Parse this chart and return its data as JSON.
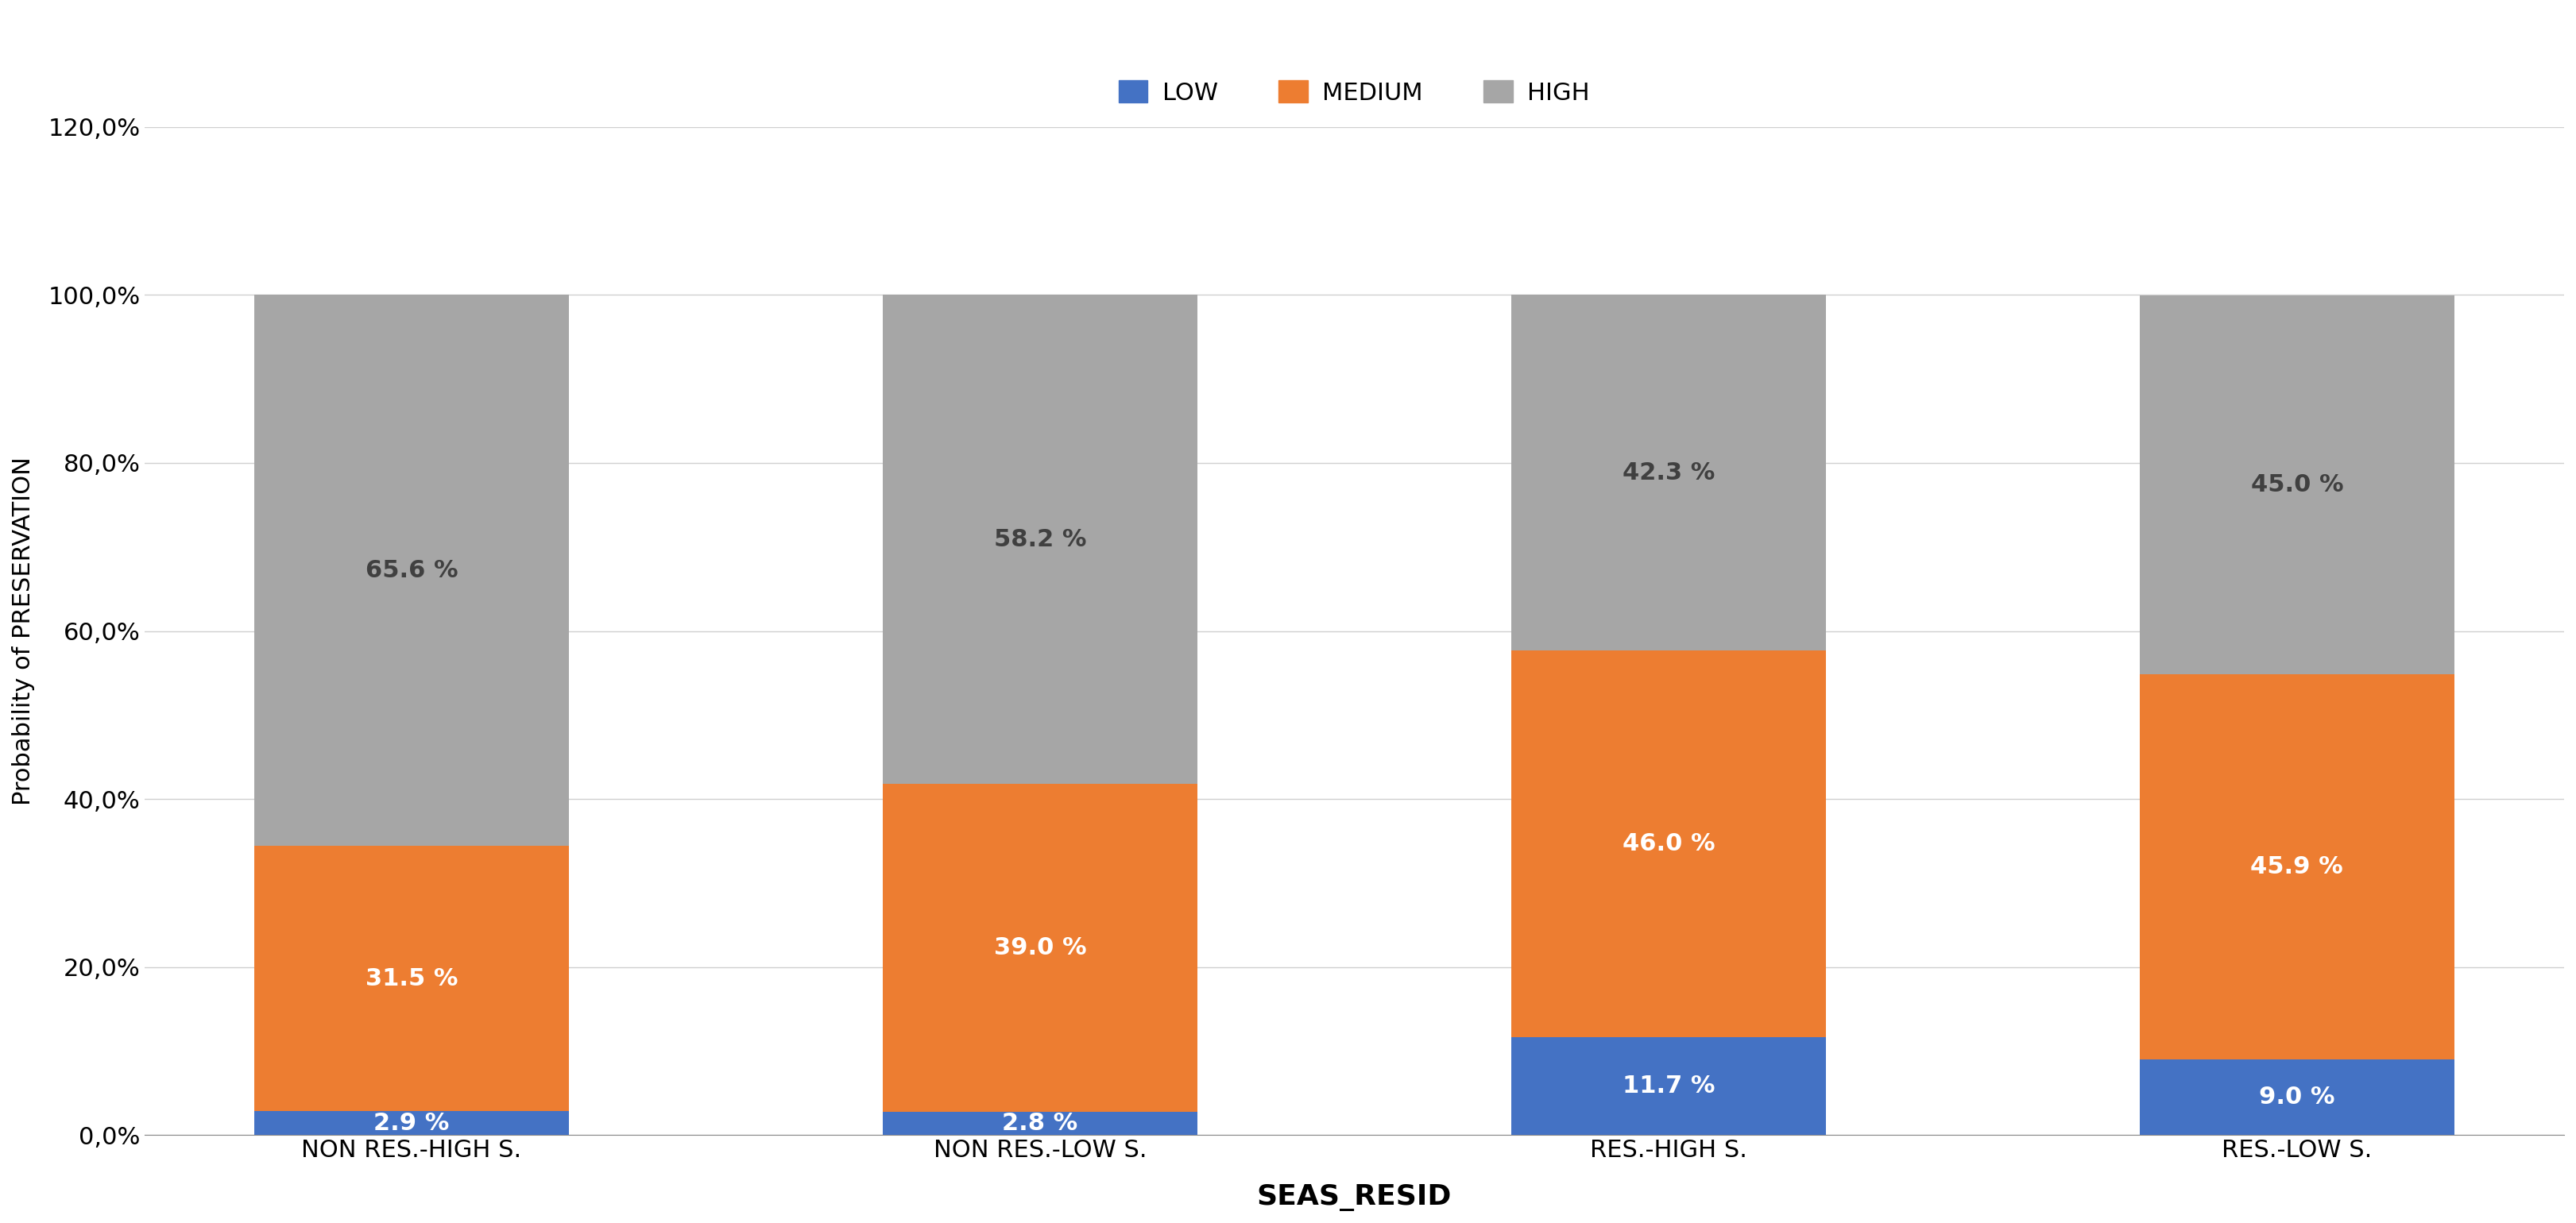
{
  "categories": [
    "NON RES.-HIGH S.",
    "NON RES.-LOW S.",
    "RES.-HIGH S.",
    "RES.-LOW S."
  ],
  "low": [
    2.9,
    2.8,
    11.7,
    9.0
  ],
  "medium": [
    31.5,
    39.0,
    46.0,
    45.9
  ],
  "high": [
    65.6,
    58.2,
    42.3,
    45.0
  ],
  "low_color": "#4472c4",
  "medium_color": "#ed7d31",
  "high_color": "#a6a6a6",
  "ylabel": "Probability of PRESERVATION",
  "xlabel": "SEAS_RESID",
  "ylim": [
    0,
    120
  ],
  "yticks": [
    0,
    20,
    40,
    60,
    80,
    100,
    120
  ],
  "ytick_labels": [
    "0,0%",
    "20,0%",
    "40,0%",
    "60,0%",
    "80,0%",
    "100,0%",
    "120,0%"
  ],
  "legend_labels": [
    "LOW",
    "MEDIUM",
    "HIGH"
  ],
  "tick_fontsize": 22,
  "bar_label_fontsize": 22,
  "legend_fontsize": 22,
  "xlabel_fontsize": 26,
  "ylabel_fontsize": 22,
  "bar_width": 0.5
}
